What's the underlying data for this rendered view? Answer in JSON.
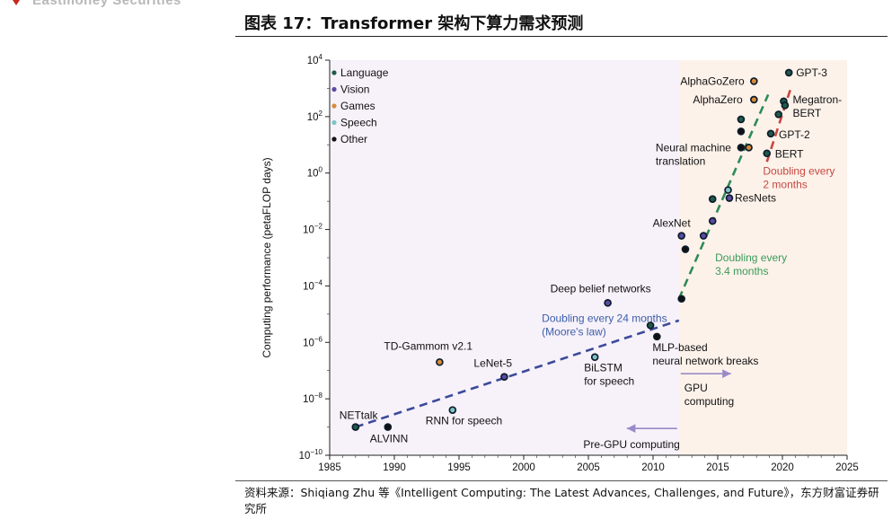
{
  "header": {
    "brand": "Eastmoney Securities"
  },
  "figure": {
    "title": "图表 17：Transformer 架构下算力需求预测"
  },
  "source": {
    "text": "资料来源：Shiqiang Zhu 等《Intelligent Computing: The Latest Advances, Challenges, and Future》，东方财富证券研究所"
  },
  "chart_data": {
    "type": "scatter",
    "title": "",
    "xlabel": "",
    "ylabel": "Computing performance (petaFLOP days)",
    "xlim": [
      1985,
      2025
    ],
    "ylim_log10": [
      -10,
      4
    ],
    "yscale": "log",
    "xticks": [
      1985,
      1990,
      1995,
      2000,
      2005,
      2010,
      2015,
      2020,
      2025
    ],
    "yticks": [
      {
        "value": 1e-10,
        "label": "10",
        "exp": "−10"
      },
      {
        "value": 1e-08,
        "label": "10",
        "exp": "−8"
      },
      {
        "value": 1e-06,
        "label": "10",
        "exp": "−6"
      },
      {
        "value": 0.0001,
        "label": "10",
        "exp": "−4"
      },
      {
        "value": 0.01,
        "label": "10",
        "exp": "−2"
      },
      {
        "value": 1,
        "label": "10",
        "exp": "0"
      },
      {
        "value": 100,
        "label": "10",
        "exp": "2"
      },
      {
        "value": 10000,
        "label": "10",
        "exp": "4"
      }
    ],
    "grid": false,
    "legend_position": "top-left",
    "colors": {
      "Language": "#1f5a4a",
      "Vision": "#5b4aa6",
      "Games": "#d98b3a",
      "Speech": "#7cc4c8",
      "Other": "#111111",
      "pre_gpu_background": "#f7f1fa",
      "gpu_background": "#fdf2ea",
      "pre_gpu_trend": "#3b4a9a",
      "gpu_trend": "#2e8b57",
      "transformer_trend": "#c8463f",
      "arrow": "#9b8ac8",
      "trend_text_blue": "#3b5ea8",
      "trend_text_green": "#3a9a58",
      "trend_text_red": "#c8463f"
    },
    "legend": [
      "Language",
      "Vision",
      "Games",
      "Speech",
      "Other"
    ],
    "points": [
      {
        "label": "NETtalk",
        "x": 1987.0,
        "y": 1e-09,
        "category": "Language"
      },
      {
        "label": "ALVINN",
        "x": 1989.5,
        "y": 1e-09,
        "category": "Other"
      },
      {
        "label": "RNN for speech",
        "x": 1994.5,
        "y": 4e-09,
        "category": "Speech"
      },
      {
        "label": "TD-Gammom v2.1",
        "x": 1993.5,
        "y": 2e-07,
        "category": "Games"
      },
      {
        "label": "LeNet-5",
        "x": 1998.5,
        "y": 6e-08,
        "category": "Vision"
      },
      {
        "label": "BiLSTM for speech",
        "x": 2005.5,
        "y": 3e-07,
        "category": "Speech"
      },
      {
        "label": "Deep belief networks",
        "x": 2006.5,
        "y": 2.5e-05,
        "category": "Vision"
      },
      {
        "label": "",
        "x": 2009.8,
        "y": 4e-06,
        "category": "Language"
      },
      {
        "label": "MLP-based neural network breaks",
        "x": 2010.3,
        "y": 1.6e-06,
        "category": "Other"
      },
      {
        "label": "",
        "x": 2012.2,
        "y": 3.5e-05,
        "category": "Other"
      },
      {
        "label": "AlexNet",
        "x": 2012.2,
        "y": 0.006,
        "category": "Vision"
      },
      {
        "label": "",
        "x": 2012.5,
        "y": 0.002,
        "category": "Other"
      },
      {
        "label": "",
        "x": 2013.9,
        "y": 0.006,
        "category": "Vision"
      },
      {
        "label": "",
        "x": 2014.6,
        "y": 0.02,
        "category": "Vision"
      },
      {
        "label": "",
        "x": 2014.6,
        "y": 0.12,
        "category": "Language"
      },
      {
        "label": "",
        "x": 2015.8,
        "y": 0.25,
        "category": "Speech"
      },
      {
        "label": "ResNets",
        "x": 2015.9,
        "y": 0.13,
        "category": "Vision"
      },
      {
        "label": "Neural machine translation",
        "x": 2016.8,
        "y": 8.0,
        "category": "Other"
      },
      {
        "label": "",
        "x": 2016.8,
        "y": 30,
        "category": "Other"
      },
      {
        "label": "",
        "x": 2016.8,
        "y": 80,
        "category": "Language"
      },
      {
        "label": "",
        "x": 2017.4,
        "y": 8.0,
        "category": "Games"
      },
      {
        "label": "AlphaZero",
        "x": 2017.8,
        "y": 400,
        "category": "Games"
      },
      {
        "label": "AlphaGoZero",
        "x": 2017.8,
        "y": 1800,
        "category": "Games"
      },
      {
        "label": "BERT",
        "x": 2018.8,
        "y": 5.0,
        "category": "Language"
      },
      {
        "label": "GPT-2",
        "x": 2019.1,
        "y": 25,
        "category": "Language"
      },
      {
        "label": "",
        "x": 2019.7,
        "y": 120,
        "category": "Language"
      },
      {
        "label": "Megatron-BERT",
        "x": 2020.1,
        "y": 350,
        "category": "Language"
      },
      {
        "label": "",
        "x": 2020.2,
        "y": 250,
        "category": "Language"
      },
      {
        "label": "GPT-3",
        "x": 2020.5,
        "y": 3600,
        "category": "Language"
      }
    ],
    "legend_items": [
      {
        "name": "Language",
        "label": "Language"
      },
      {
        "name": "Vision",
        "label": "Vision"
      },
      {
        "name": "Games",
        "label": "Games"
      },
      {
        "name": "Speech",
        "label": "Speech"
      },
      {
        "name": "Other",
        "label": "Other"
      }
    ],
    "trend_lines": [
      {
        "label": "Doubling every 24 months (Moore's law)",
        "from": [
          1987.0,
          1e-09
        ],
        "to": [
          2012.0,
          6e-06
        ],
        "color": "pre_gpu_trend"
      },
      {
        "label": "Doubling every 3.4 months",
        "from": [
          2012.0,
          3.5e-05
        ],
        "to": [
          2018.9,
          600
        ],
        "color": "gpu_trend"
      },
      {
        "label": "Doubling every 2 months",
        "from": [
          2018.8,
          2.5
        ],
        "to": [
          2020.7,
          1200
        ],
        "color": "transformer_trend"
      }
    ],
    "annotations": {
      "gpu": "GPU computing",
      "pre_gpu": "Pre-GPU computing",
      "moore": [
        "Doubling every 24 months",
        "(Moore's law)"
      ],
      "gpu_trend": [
        "Doubling every",
        "3.4 months"
      ],
      "transformer_trend": [
        "Doubling every",
        "2 months"
      ],
      "nmt": [
        "Neural machine",
        "translation"
      ],
      "mlp": [
        "MLP-based",
        "neural network breaks"
      ],
      "bilstm": [
        "BiLSTM",
        "for speech"
      ],
      "megatron": [
        "Megatron-",
        "BERT"
      ]
    },
    "gpu_split_year": 2012
  }
}
